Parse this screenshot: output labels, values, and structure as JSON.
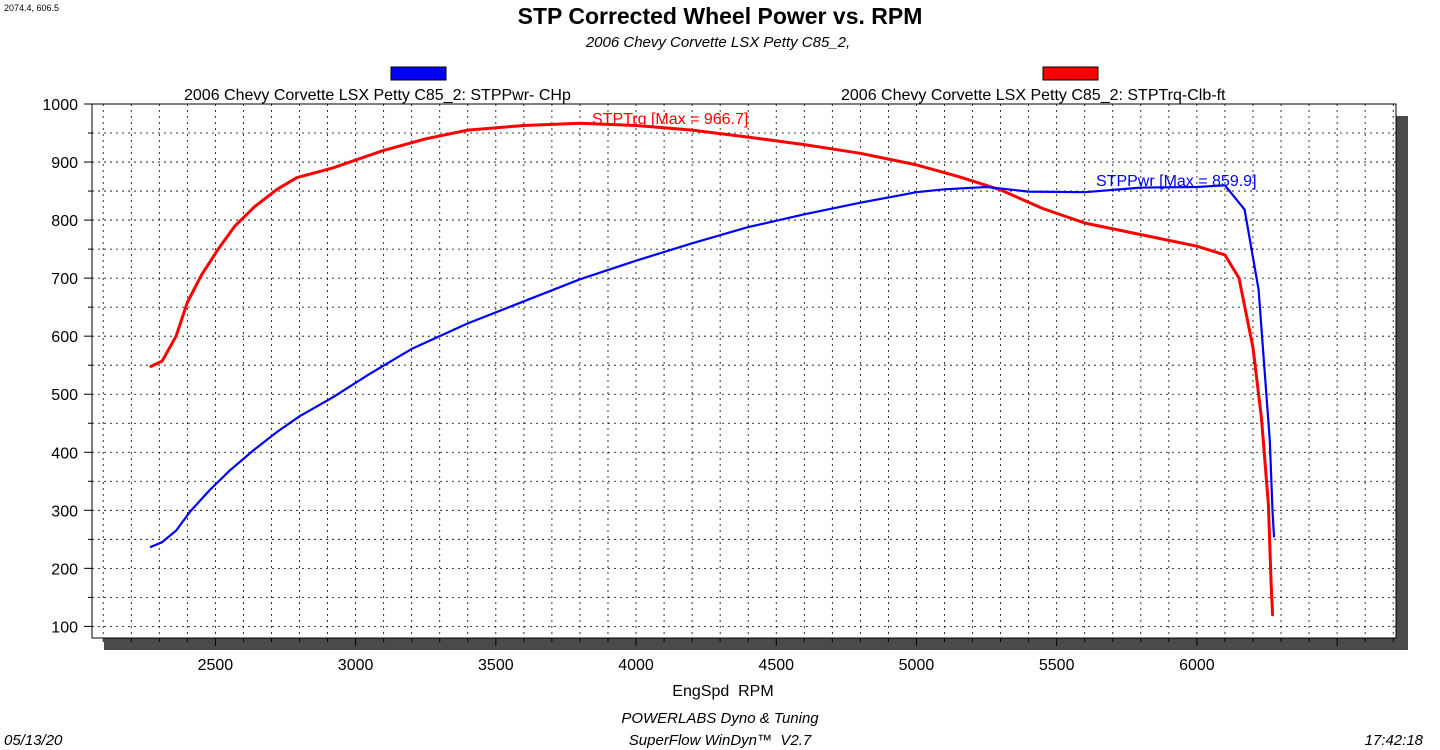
{
  "coord_readout": "2074.4, 606.5",
  "chart_data": {
    "type": "line",
    "title": "STP Corrected Wheel Power vs. RPM",
    "subtitle": "2006 Chevy Corvette LSX Petty C85_2,",
    "xlabel": "EngSpd  RPM",
    "ylabel": "",
    "xlim": [
      2060,
      6710
    ],
    "ylim": [
      80,
      1000
    ],
    "xticks": [
      2500,
      3000,
      3500,
      4000,
      4500,
      5000,
      5500,
      6000
    ],
    "yticks": [
      100,
      200,
      300,
      400,
      500,
      600,
      700,
      800,
      900,
      1000
    ],
    "grid": true,
    "legend_position": "top",
    "series": [
      {
        "name": "2006 Chevy Corvette LSX Petty C85_2: STPPwr- CHp",
        "color": "#0000ff",
        "annotation": "STPPwr [Max = 859.9]",
        "points": [
          [
            2270,
            237
          ],
          [
            2310,
            245
          ],
          [
            2360,
            265
          ],
          [
            2410,
            298
          ],
          [
            2480,
            335
          ],
          [
            2550,
            368
          ],
          [
            2640,
            405
          ],
          [
            2720,
            435
          ],
          [
            2800,
            462
          ],
          [
            2920,
            495
          ],
          [
            3050,
            535
          ],
          [
            3200,
            578
          ],
          [
            3400,
            622
          ],
          [
            3600,
            660
          ],
          [
            3800,
            698
          ],
          [
            4000,
            730
          ],
          [
            4200,
            760
          ],
          [
            4400,
            788
          ],
          [
            4600,
            810
          ],
          [
            4800,
            830
          ],
          [
            5000,
            848
          ],
          [
            5100,
            853
          ],
          [
            5250,
            857
          ],
          [
            5400,
            849
          ],
          [
            5600,
            848
          ],
          [
            5800,
            856
          ],
          [
            6000,
            857
          ],
          [
            6100,
            860
          ],
          [
            6170,
            818
          ],
          [
            6220,
            680
          ],
          [
            6260,
            420
          ],
          [
            6270,
            295
          ],
          [
            6275,
            255
          ]
        ]
      },
      {
        "name": "2006 Chevy Corvette LSX Petty C85_2: STPTrq-Clb-ft",
        "color": "#ff0000",
        "annotation": "STPTrq [Max = 966.7]",
        "points": [
          [
            2270,
            548
          ],
          [
            2310,
            557
          ],
          [
            2360,
            600
          ],
          [
            2400,
            658
          ],
          [
            2450,
            705
          ],
          [
            2510,
            750
          ],
          [
            2570,
            790
          ],
          [
            2640,
            823
          ],
          [
            2720,
            853
          ],
          [
            2790,
            873
          ],
          [
            2920,
            890
          ],
          [
            3100,
            920
          ],
          [
            3250,
            940
          ],
          [
            3400,
            955
          ],
          [
            3600,
            963
          ],
          [
            3800,
            967
          ],
          [
            4000,
            963
          ],
          [
            4200,
            955
          ],
          [
            4400,
            943
          ],
          [
            4600,
            930
          ],
          [
            4800,
            915
          ],
          [
            5000,
            895
          ],
          [
            5150,
            875
          ],
          [
            5300,
            852
          ],
          [
            5450,
            820
          ],
          [
            5600,
            795
          ],
          [
            5800,
            775
          ],
          [
            6000,
            755
          ],
          [
            6100,
            740
          ],
          [
            6150,
            700
          ],
          [
            6200,
            580
          ],
          [
            6230,
            460
          ],
          [
            6255,
            310
          ],
          [
            6265,
            170
          ],
          [
            6270,
            120
          ]
        ]
      }
    ]
  },
  "footer": {
    "company": "POWERLABS Dyno & Tuning",
    "software": "SuperFlow WinDyn™  V2.7",
    "date": "05/13/20",
    "time": "17:42:18"
  }
}
